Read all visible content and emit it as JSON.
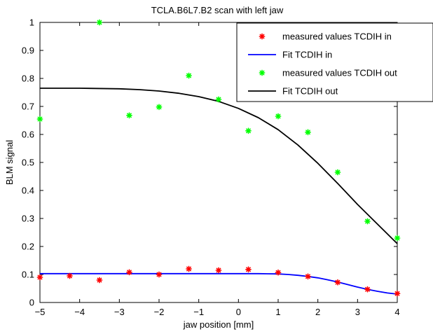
{
  "chart_data": {
    "type": "scatter",
    "title": "TCLA.B6L7.B2 scan with left jaw",
    "xlabel": "jaw position [mm]",
    "ylabel": "BLM signal",
    "xlim": [
      -5,
      4
    ],
    "ylim": [
      0,
      1
    ],
    "xticks": [
      -5,
      -4,
      -3,
      -2,
      -1,
      0,
      1,
      2,
      3,
      4
    ],
    "yticks": [
      0,
      0.1,
      0.2,
      0.3,
      0.4,
      0.5,
      0.6,
      0.7,
      0.8,
      0.9,
      1
    ],
    "xtick_labels": [
      "−5",
      "−4",
      "−3",
      "−2",
      "−1",
      "0",
      "1",
      "2",
      "3",
      "4"
    ],
    "ytick_labels": [
      "0",
      "0.1",
      "0.2",
      "0.3",
      "0.4",
      "0.5",
      "0.6",
      "0.7",
      "0.8",
      "0.9",
      "1"
    ],
    "grid": false,
    "legend_position": "top-right",
    "series": [
      {
        "name": "measured values TCDIH in",
        "kind": "scatter",
        "marker": "star",
        "color": "#ff0000",
        "x": [
          -5,
          -4.25,
          -3.5,
          -2.75,
          -2,
          -1.25,
          -0.5,
          0.25,
          1,
          1.75,
          2.5,
          3.25,
          4
        ],
        "y": [
          0.09,
          0.095,
          0.08,
          0.108,
          0.1,
          0.12,
          0.115,
          0.118,
          0.107,
          0.093,
          0.072,
          0.047,
          0.032
        ]
      },
      {
        "name": "Fit  TCDIH in",
        "kind": "line",
        "color": "#0000ff",
        "x": [
          -5,
          -4,
          -3,
          -2,
          -1,
          0,
          0.5,
          1,
          1.25,
          1.5,
          1.75,
          2,
          2.25,
          2.5,
          2.75,
          3,
          3.25,
          3.5,
          3.75,
          4
        ],
        "y": [
          0.103,
          0.103,
          0.103,
          0.103,
          0.103,
          0.103,
          0.103,
          0.102,
          0.1,
          0.097,
          0.093,
          0.088,
          0.081,
          0.073,
          0.064,
          0.055,
          0.047,
          0.04,
          0.034,
          0.03
        ]
      },
      {
        "name": "measured values TCDIH out",
        "kind": "scatter",
        "marker": "star",
        "color": "#00ff00",
        "x": [
          -5,
          -3.5,
          -2.75,
          -2,
          -1.25,
          -0.5,
          0.25,
          1,
          1.75,
          2.5,
          3.25,
          4
        ],
        "y": [
          0.655,
          1.0,
          0.668,
          0.698,
          0.81,
          0.725,
          0.613,
          0.665,
          0.608,
          0.465,
          0.29,
          0.23
        ]
      },
      {
        "name": "Fit  TCDIH out",
        "kind": "line",
        "color": "#000000",
        "x": [
          -5,
          -4,
          -3,
          -2.5,
          -2,
          -1.5,
          -1,
          -0.5,
          0,
          0.5,
          1,
          1.5,
          2,
          2.5,
          3,
          3.5,
          4
        ],
        "y": [
          0.765,
          0.765,
          0.763,
          0.76,
          0.755,
          0.747,
          0.735,
          0.718,
          0.693,
          0.66,
          0.617,
          0.562,
          0.497,
          0.425,
          0.35,
          0.28,
          0.21
        ]
      }
    ]
  }
}
